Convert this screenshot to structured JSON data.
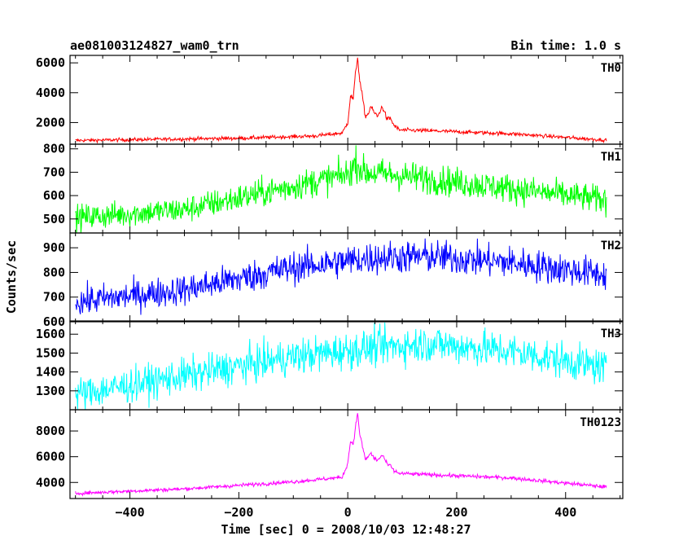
{
  "header": {
    "title": "ae081003124827_wam0_trn",
    "bin_time": "Bin time: 1.0 s"
  },
  "chart_data": {
    "type": "line",
    "xlabel": "Time [sec] 0 = 2008/10/03 12:48:27",
    "ylabel": "Counts/sec",
    "xlim": [
      -510,
      505
    ],
    "x_range": [
      -500,
      475
    ],
    "x_ticks": [
      -400,
      -200,
      0,
      200,
      400
    ],
    "grid": false,
    "panels": [
      {
        "name": "TH0",
        "color": "#ff0000",
        "ylim": [
          550,
          6500
        ],
        "y_ticks": [
          2000,
          4000,
          6000
        ],
        "noise": 60,
        "profile": [
          [
            -500,
            800
          ],
          [
            -200,
            950
          ],
          [
            -60,
            1100
          ],
          [
            -10,
            1300
          ],
          [
            0,
            2000
          ],
          [
            5,
            3800
          ],
          [
            10,
            3600
          ],
          [
            14,
            5200
          ],
          [
            18,
            6400
          ],
          [
            22,
            4800
          ],
          [
            28,
            3500
          ],
          [
            32,
            2400
          ],
          [
            38,
            2600
          ],
          [
            42,
            3100
          ],
          [
            48,
            2700
          ],
          [
            55,
            2400
          ],
          [
            62,
            3000
          ],
          [
            66,
            2900
          ],
          [
            72,
            2200
          ],
          [
            78,
            2300
          ],
          [
            85,
            1800
          ],
          [
            95,
            1500
          ],
          [
            150,
            1450
          ],
          [
            300,
            1250
          ],
          [
            475,
            820
          ]
        ]
      },
      {
        "name": "TH1",
        "color": "#00ff00",
        "ylim": [
          440,
          820
        ],
        "y_ticks": [
          500,
          600,
          700,
          800
        ],
        "noise": 28,
        "profile": [
          [
            -500,
            505
          ],
          [
            -300,
            540
          ],
          [
            -100,
            640
          ],
          [
            0,
            690
          ],
          [
            15,
            740
          ],
          [
            30,
            700
          ],
          [
            100,
            685
          ],
          [
            300,
            630
          ],
          [
            475,
            580
          ]
        ]
      },
      {
        "name": "TH2",
        "color": "#0000ff",
        "ylim": [
          600,
          960
        ],
        "y_ticks": [
          600,
          700,
          800,
          900
        ],
        "noise": 30,
        "profile": [
          [
            -500,
            680
          ],
          [
            -300,
            730
          ],
          [
            -100,
            820
          ],
          [
            50,
            860
          ],
          [
            150,
            865
          ],
          [
            300,
            840
          ],
          [
            475,
            790
          ]
        ]
      },
      {
        "name": "TH3",
        "color": "#00ffff",
        "ylim": [
          1200,
          1670
        ],
        "y_ticks": [
          1300,
          1400,
          1500,
          1600
        ],
        "noise": 45,
        "profile": [
          [
            -500,
            1280
          ],
          [
            -300,
            1380
          ],
          [
            -100,
            1480
          ],
          [
            50,
            1530
          ],
          [
            150,
            1550
          ],
          [
            300,
            1510
          ],
          [
            475,
            1420
          ]
        ]
      },
      {
        "name": "TH0123",
        "color": "#ff00ff",
        "ylim": [
          2750,
          9650
        ],
        "y_ticks": [
          4000,
          6000,
          8000
        ],
        "noise": 70,
        "profile": [
          [
            -500,
            3150
          ],
          [
            -300,
            3500
          ],
          [
            -100,
            4050
          ],
          [
            -10,
            4400
          ],
          [
            0,
            5500
          ],
          [
            5,
            7200
          ],
          [
            10,
            7000
          ],
          [
            14,
            8200
          ],
          [
            18,
            9400
          ],
          [
            22,
            7800
          ],
          [
            28,
            6600
          ],
          [
            32,
            5800
          ],
          [
            38,
            6000
          ],
          [
            42,
            6300
          ],
          [
            48,
            5900
          ],
          [
            55,
            5700
          ],
          [
            62,
            6100
          ],
          [
            66,
            6000
          ],
          [
            72,
            5400
          ],
          [
            78,
            5300
          ],
          [
            85,
            4900
          ],
          [
            95,
            4700
          ],
          [
            150,
            4600
          ],
          [
            300,
            4350
          ],
          [
            475,
            3650
          ]
        ]
      }
    ]
  }
}
